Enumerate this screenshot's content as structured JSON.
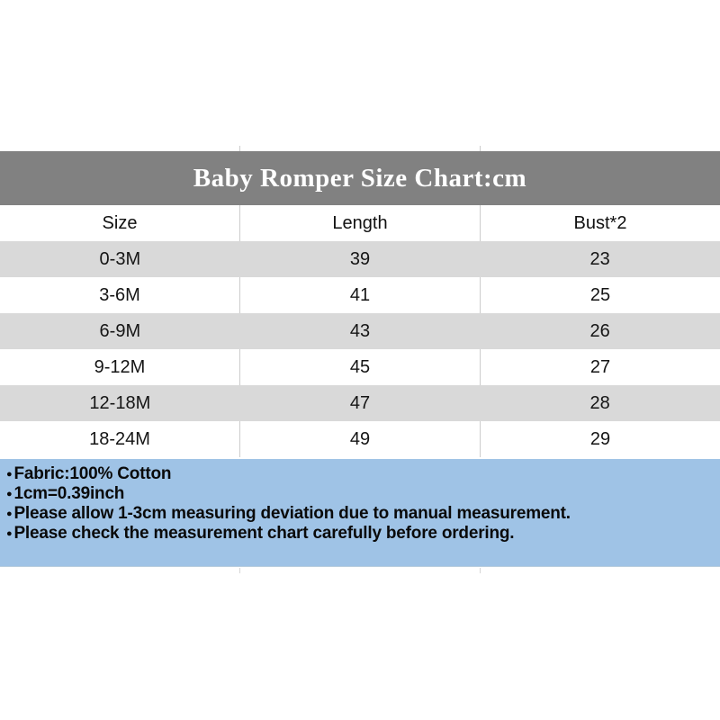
{
  "title": "Baby Romper Size Chart:cm",
  "table": {
    "headers": [
      "Size",
      "Length",
      "Bust*2"
    ],
    "rows": [
      [
        "0-3M",
        "39",
        "23"
      ],
      [
        "3-6M",
        "41",
        "25"
      ],
      [
        "6-9M",
        "43",
        "26"
      ],
      [
        "9-12M",
        "45",
        "27"
      ],
      [
        "12-18M",
        "47",
        "28"
      ],
      [
        "18-24M",
        "49",
        "29"
      ]
    ]
  },
  "notes": {
    "bullet": "●",
    "lines": [
      "Fabric:100% Cotton",
      "1cm=0.39inch",
      "Please allow 1-3cm measuring deviation due to manual measurement.",
      "Please check the measurement chart carefully before ordering."
    ]
  },
  "colors": {
    "title_bar": "#818181",
    "title_text": "#ffffff",
    "row_alt": "#d9d9d9",
    "divider": "#cccccc",
    "notes_bg": "#9fc3e6",
    "body_text": "#151515"
  },
  "chart_data": {
    "type": "table",
    "title": "Baby Romper Size Chart:cm",
    "columns": [
      "Size",
      "Length",
      "Bust*2"
    ],
    "rows": [
      [
        "0-3M",
        39,
        23
      ],
      [
        "3-6M",
        41,
        25
      ],
      [
        "6-9M",
        43,
        26
      ],
      [
        "9-12M",
        45,
        27
      ],
      [
        "12-18M",
        47,
        28
      ],
      [
        "18-24M",
        49,
        29
      ]
    ]
  }
}
